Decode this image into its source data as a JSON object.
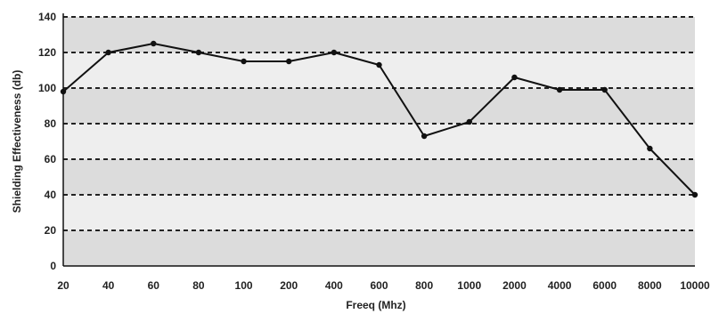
{
  "chart_data": {
    "type": "line",
    "title": "",
    "xlabel": "Freeq (Mhz)",
    "ylabel": "Shielding Effectiveness (db)",
    "categories": [
      "20",
      "40",
      "60",
      "80",
      "100",
      "200",
      "400",
      "600",
      "800",
      "1000",
      "2000",
      "4000",
      "6000",
      "8000",
      "10000"
    ],
    "series": [
      {
        "values": [
          98,
          120,
          125,
          120,
          115,
          115,
          120,
          113,
          73,
          81,
          106,
          99,
          99,
          66,
          40
        ]
      }
    ],
    "ylim": [
      0,
      140
    ],
    "yticks": [
      0,
      20,
      40,
      60,
      80,
      100,
      120,
      140
    ],
    "grid": true,
    "line_color": "#111111",
    "band_colors": [
      "#dcdcdc",
      "#eeeeee"
    ]
  }
}
